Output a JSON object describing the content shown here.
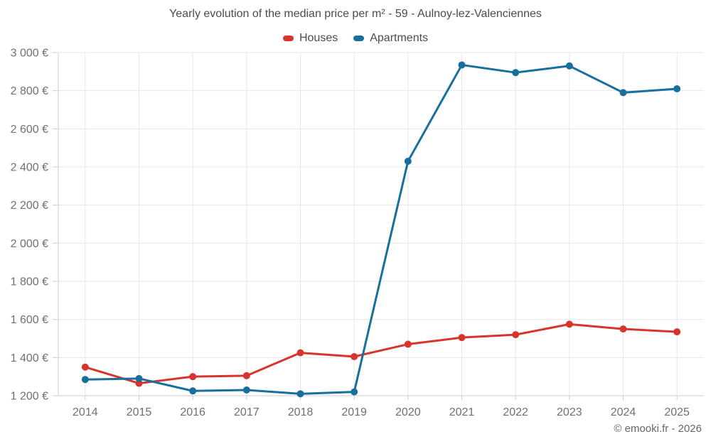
{
  "chart_data": {
    "type": "line",
    "title": "Yearly evolution of the median price per m² - 59 - Aulnoy-lez-Valenciennes",
    "categories": [
      "2014",
      "2015",
      "2016",
      "2017",
      "2018",
      "2019",
      "2020",
      "2021",
      "2022",
      "2023",
      "2024",
      "2025"
    ],
    "series": [
      {
        "name": "Houses",
        "color": "#d6352d",
        "values": [
          1350,
          1265,
          1300,
          1305,
          1425,
          1405,
          1470,
          1505,
          1520,
          1575,
          1550,
          1535
        ]
      },
      {
        "name": "Apartments",
        "color": "#196f9c",
        "values": [
          1285,
          1290,
          1225,
          1230,
          1210,
          1220,
          2430,
          2935,
          2895,
          2930,
          2790,
          2810
        ]
      }
    ],
    "ylim": [
      1200,
      3000
    ],
    "ytick_step": 200,
    "ytick_labels": [
      "1 200 €",
      "1 400 €",
      "1 600 €",
      "1 800 €",
      "2 000 €",
      "2 200 €",
      "2 400 €",
      "2 600 €",
      "2 800 €",
      "3 000 €"
    ],
    "ycurrency": "€",
    "grid": true,
    "legend_position": "top",
    "grid_color": "#e7e7e7",
    "axis_color": "#cccccc",
    "tick_label_color": "#707070",
    "title_color": "#4c4c4c"
  },
  "footer": {
    "copyright": "© emooki.fr - 2026"
  }
}
